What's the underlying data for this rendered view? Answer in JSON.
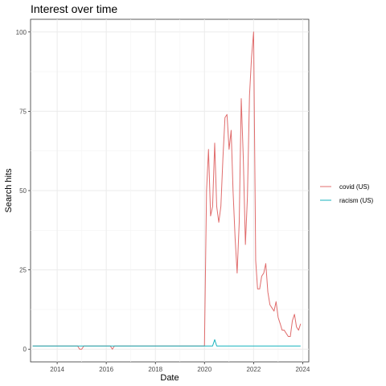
{
  "chart_data": {
    "type": "line",
    "title": "Interest over time",
    "xlabel": "Date",
    "ylabel": "Search hits",
    "xlim": [
      "2012-12-01",
      "2024-04-01"
    ],
    "ylim": [
      -4,
      104
    ],
    "x_ticks": [
      {
        "value": "2014-01-01",
        "label": "2014"
      },
      {
        "value": "2016-01-01",
        "label": "2016"
      },
      {
        "value": "2018-01-01",
        "label": "2018"
      },
      {
        "value": "2020-01-01",
        "label": "2020"
      },
      {
        "value": "2022-01-01",
        "label": "2022"
      },
      {
        "value": "2024-01-01",
        "label": "2024"
      }
    ],
    "y_ticks": [
      0,
      25,
      50,
      75,
      100
    ],
    "grid": true,
    "legend_position": "right",
    "series": [
      {
        "name": "covid (US)",
        "color": "#e06c6c",
        "points": [
          [
            "2013-01-01",
            1
          ],
          [
            "2014-11-01",
            1
          ],
          [
            "2014-12-01",
            0
          ],
          [
            "2015-01-01",
            0
          ],
          [
            "2015-02-01",
            1
          ],
          [
            "2016-03-01",
            1
          ],
          [
            "2016-04-01",
            0
          ],
          [
            "2016-05-01",
            1
          ],
          [
            "2020-01-01",
            1
          ],
          [
            "2020-02-01",
            50
          ],
          [
            "2020-03-01",
            63
          ],
          [
            "2020-04-01",
            42
          ],
          [
            "2020-05-01",
            45
          ],
          [
            "2020-06-01",
            65
          ],
          [
            "2020-07-01",
            45
          ],
          [
            "2020-08-01",
            40
          ],
          [
            "2020-09-01",
            45
          ],
          [
            "2020-10-01",
            60
          ],
          [
            "2020-11-01",
            73
          ],
          [
            "2020-12-01",
            74
          ],
          [
            "2021-01-01",
            63
          ],
          [
            "2021-02-01",
            69
          ],
          [
            "2021-03-01",
            50
          ],
          [
            "2021-04-01",
            35
          ],
          [
            "2021-05-01",
            24
          ],
          [
            "2021-06-01",
            40
          ],
          [
            "2021-07-01",
            79
          ],
          [
            "2021-08-01",
            60
          ],
          [
            "2021-09-01",
            33
          ],
          [
            "2021-10-01",
            48
          ],
          [
            "2021-11-01",
            80
          ],
          [
            "2021-12-01",
            92
          ],
          [
            "2022-01-01",
            100
          ],
          [
            "2022-02-01",
            28
          ],
          [
            "2022-03-01",
            19
          ],
          [
            "2022-04-01",
            19
          ],
          [
            "2022-05-01",
            23
          ],
          [
            "2022-06-01",
            24
          ],
          [
            "2022-07-01",
            27
          ],
          [
            "2022-08-01",
            18
          ],
          [
            "2022-09-01",
            14
          ],
          [
            "2022-10-01",
            13
          ],
          [
            "2022-11-01",
            12
          ],
          [
            "2022-12-01",
            15
          ],
          [
            "2023-01-01",
            10
          ],
          [
            "2023-02-01",
            8
          ],
          [
            "2023-03-01",
            6
          ],
          [
            "2023-04-01",
            6
          ],
          [
            "2023-05-01",
            5
          ],
          [
            "2023-06-01",
            4
          ],
          [
            "2023-07-01",
            4
          ],
          [
            "2023-08-01",
            9
          ],
          [
            "2023-09-01",
            11
          ],
          [
            "2023-10-01",
            7
          ],
          [
            "2023-11-01",
            6
          ],
          [
            "2023-12-01",
            8
          ]
        ]
      },
      {
        "name": "racism (US)",
        "color": "#17b3bd",
        "points": [
          [
            "2013-01-01",
            1
          ],
          [
            "2020-04-01",
            1
          ],
          [
            "2020-05-01",
            1
          ],
          [
            "2020-06-01",
            3
          ],
          [
            "2020-07-01",
            1
          ],
          [
            "2023-12-01",
            1
          ]
        ]
      }
    ]
  }
}
